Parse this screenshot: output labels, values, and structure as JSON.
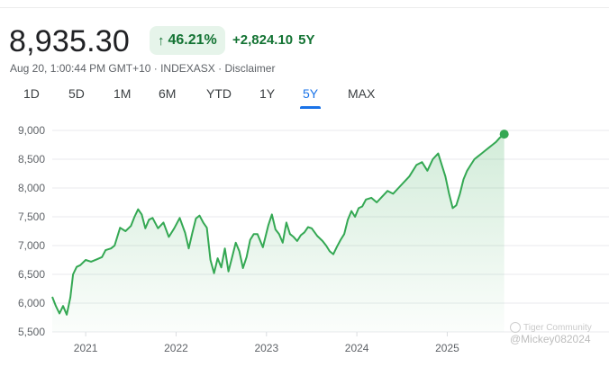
{
  "header": {
    "price": "8,935.30",
    "pct_change": "46.21%",
    "abs_change": "+2,824.10",
    "period_label": "5Y",
    "meta_time": "Aug 20, 1:00:44 PM GMT+10 · INDEXASX · ",
    "disclaimer": "Disclaimer",
    "accent_color": "#137333",
    "accent_bg": "#e6f4ea"
  },
  "tabs": [
    {
      "label": "1D",
      "active": false
    },
    {
      "label": "5D",
      "active": false
    },
    {
      "label": "1M",
      "active": false
    },
    {
      "label": "6M",
      "active": false
    },
    {
      "label": "YTD",
      "active": false
    },
    {
      "label": "1Y",
      "active": false
    },
    {
      "label": "5Y",
      "active": true
    },
    {
      "label": "MAX",
      "active": false
    }
  ],
  "watermark": {
    "line1": "Tiger Community",
    "line2": "@Mickey082024"
  },
  "chart_data": {
    "type": "area",
    "line_color": "#34a853",
    "ylim": [
      5500,
      9000
    ],
    "yticks": [
      9000,
      8500,
      8000,
      7500,
      7000,
      6500,
      6000,
      5500
    ],
    "ytick_labels": [
      "9,000",
      "8,500",
      "8,000",
      "7,500",
      "7,000",
      "6,500",
      "6,000",
      "5,500"
    ],
    "xticks": [
      2021,
      2022,
      2023,
      2024,
      2025
    ],
    "xtick_labels": [
      "2021",
      "2022",
      "2023",
      "2024",
      "2025"
    ],
    "xlim": [
      2020.63,
      2026.63
    ],
    "grid": true,
    "series": [
      {
        "x": [
          2020.63,
          2020.67,
          2020.71,
          2020.75,
          2020.79,
          2020.83,
          2020.86,
          2020.9,
          2020.94,
          2021.0,
          2021.06,
          2021.12,
          2021.18,
          2021.22,
          2021.28,
          2021.32,
          2021.38,
          2021.44,
          2021.5,
          2021.54,
          2021.58,
          2021.62,
          2021.66,
          2021.7,
          2021.74,
          2021.8,
          2021.86,
          2021.92,
          2021.98,
          2022.04,
          2022.1,
          2022.14,
          2022.18,
          2022.22,
          2022.26,
          2022.3,
          2022.34,
          2022.38,
          2022.42,
          2022.46,
          2022.5,
          2022.54,
          2022.58,
          2022.62,
          2022.66,
          2022.7,
          2022.74,
          2022.78,
          2022.82,
          2022.86,
          2022.9,
          2022.96,
          2023.02,
          2023.06,
          2023.1,
          2023.14,
          2023.18,
          2023.22,
          2023.26,
          2023.3,
          2023.34,
          2023.38,
          2023.42,
          2023.46,
          2023.5,
          2023.56,
          2023.62,
          2023.66,
          2023.7,
          2023.74,
          2023.78,
          2023.82,
          2023.86,
          2023.9,
          2023.94,
          2023.98,
          2024.02,
          2024.06,
          2024.1,
          2024.16,
          2024.22,
          2024.28,
          2024.34,
          2024.4,
          2024.46,
          2024.52,
          2024.58,
          2024.62,
          2024.66,
          2024.72,
          2024.78,
          2024.84,
          2024.9,
          2024.94,
          2024.98,
          2025.02,
          2025.06,
          2025.1,
          2025.14,
          2025.18,
          2025.22,
          2025.26,
          2025.3,
          2025.34,
          2025.38,
          2025.42,
          2025.46,
          2025.5,
          2025.54,
          2025.58,
          2025.63
        ],
        "y": [
          6110,
          5950,
          5820,
          5950,
          5800,
          6100,
          6500,
          6630,
          6660,
          6750,
          6720,
          6760,
          6800,
          6920,
          6950,
          7000,
          7310,
          7250,
          7340,
          7500,
          7630,
          7540,
          7300,
          7450,
          7480,
          7300,
          7400,
          7150,
          7300,
          7480,
          7220,
          6950,
          7220,
          7470,
          7520,
          7400,
          7310,
          6750,
          6520,
          6780,
          6620,
          6950,
          6550,
          6800,
          7050,
          6900,
          6610,
          6800,
          7100,
          7200,
          7200,
          6970,
          7350,
          7540,
          7280,
          7200,
          7050,
          7400,
          7200,
          7150,
          7080,
          7180,
          7230,
          7320,
          7300,
          7170,
          7080,
          7000,
          6900,
          6850,
          6980,
          7100,
          7200,
          7450,
          7600,
          7500,
          7650,
          7680,
          7800,
          7830,
          7750,
          7850,
          7950,
          7900,
          8000,
          8100,
          8200,
          8300,
          8400,
          8450,
          8300,
          8500,
          8600,
          8400,
          8200,
          7900,
          7650,
          7700,
          7900,
          8150,
          8300,
          8400,
          8500,
          8550,
          8600,
          8650,
          8700,
          8750,
          8800,
          8870,
          8935.3
        ]
      }
    ]
  }
}
